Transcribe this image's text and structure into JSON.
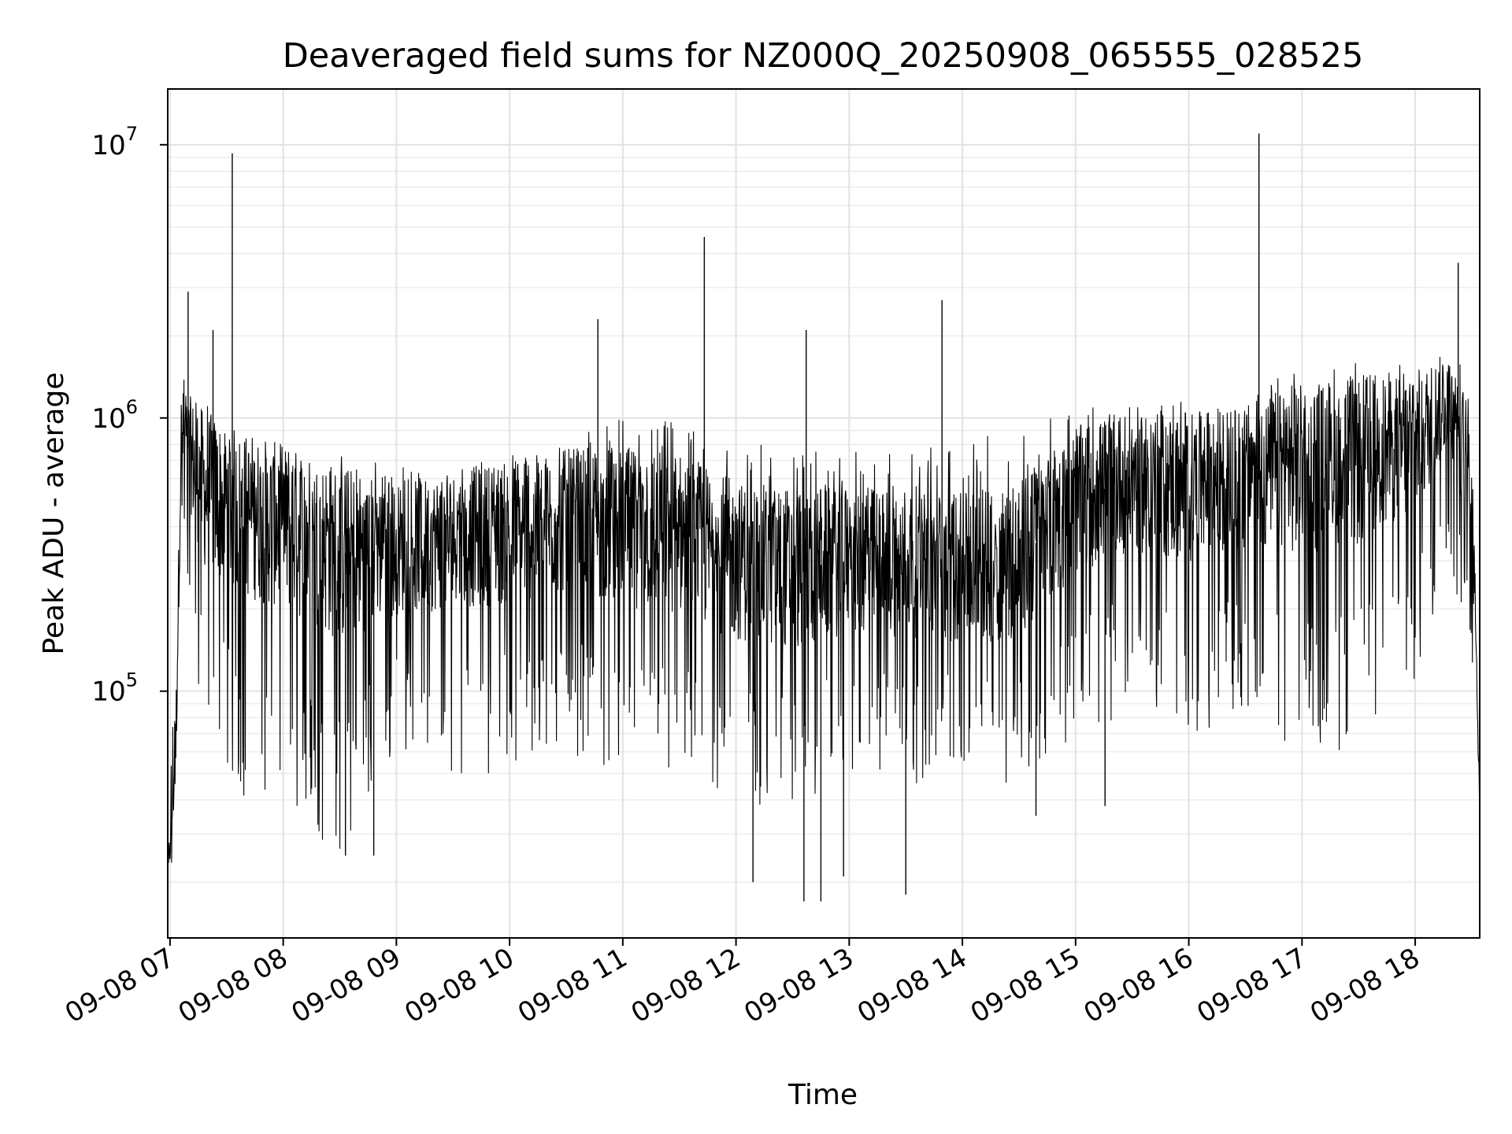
{
  "chart_data": {
    "type": "line",
    "title": "Deaveraged field sums for NZ000Q_20250908_065555_028525",
    "xlabel": "Time",
    "ylabel": "Peak ADU - average",
    "yscale": "log",
    "ylim": [
      12500,
      16000000
    ],
    "xlim_hours": [
      6.98,
      18.57
    ],
    "grid": true,
    "legend": "none",
    "line_color": "#000000",
    "x_tick_hours": [
      7,
      8,
      9,
      10,
      11,
      12,
      13,
      14,
      15,
      16,
      17,
      18
    ],
    "x_ticks": [
      "09-08 07",
      "09-08 08",
      "09-08 09",
      "09-08 10",
      "09-08 11",
      "09-08 12",
      "09-08 13",
      "09-08 14",
      "09-08 15",
      "09-08 16",
      "09-08 17",
      "09-08 18"
    ],
    "y_ticks": [
      {
        "base": "10",
        "exp": "5",
        "value": 100000
      },
      {
        "base": "10",
        "exp": "6",
        "value": 1000000
      },
      {
        "base": "10",
        "exp": "7",
        "value": 10000000
      }
    ],
    "series": [
      {
        "band_points": [
          {
            "x": 6.98,
            "median": 20000,
            "low": 15000,
            "high": 28000
          },
          {
            "x": 7.05,
            "median": 60000,
            "low": 30000,
            "high": 150000
          },
          {
            "x": 7.1,
            "median": 900000,
            "low": 400000,
            "high": 2000000
          },
          {
            "x": 7.3,
            "median": 550000,
            "low": 60000,
            "high": 1200000
          },
          {
            "x": 7.6,
            "median": 450000,
            "low": 40000,
            "high": 900000
          },
          {
            "x": 8.0,
            "median": 400000,
            "low": 35000,
            "high": 800000
          },
          {
            "x": 8.5,
            "median": 320000,
            "low": 25000,
            "high": 750000
          },
          {
            "x": 9.0,
            "median": 330000,
            "low": 60000,
            "high": 700000
          },
          {
            "x": 9.5,
            "median": 360000,
            "low": 50000,
            "high": 700000
          },
          {
            "x": 10.0,
            "median": 380000,
            "low": 50000,
            "high": 750000
          },
          {
            "x": 10.5,
            "median": 420000,
            "low": 60000,
            "high": 900000
          },
          {
            "x": 11.0,
            "median": 400000,
            "low": 50000,
            "high": 1000000
          },
          {
            "x": 11.5,
            "median": 380000,
            "low": 45000,
            "high": 1000000
          },
          {
            "x": 12.0,
            "median": 300000,
            "low": 40000,
            "high": 800000
          },
          {
            "x": 12.5,
            "median": 280000,
            "low": 35000,
            "high": 800000
          },
          {
            "x": 13.0,
            "median": 300000,
            "low": 50000,
            "high": 750000
          },
          {
            "x": 13.5,
            "median": 300000,
            "low": 45000,
            "high": 800000
          },
          {
            "x": 14.0,
            "median": 280000,
            "low": 50000,
            "high": 850000
          },
          {
            "x": 14.5,
            "median": 300000,
            "low": 45000,
            "high": 900000
          },
          {
            "x": 15.0,
            "median": 500000,
            "low": 70000,
            "high": 1100000
          },
          {
            "x": 15.5,
            "median": 600000,
            "low": 80000,
            "high": 1200000
          },
          {
            "x": 16.0,
            "median": 550000,
            "low": 70000,
            "high": 1200000
          },
          {
            "x": 16.5,
            "median": 600000,
            "low": 80000,
            "high": 1300000
          },
          {
            "x": 17.0,
            "median": 650000,
            "low": 60000,
            "high": 1500000
          },
          {
            "x": 17.5,
            "median": 700000,
            "low": 60000,
            "high": 1600000
          },
          {
            "x": 18.0,
            "median": 800000,
            "low": 100000,
            "high": 1600000
          },
          {
            "x": 18.3,
            "median": 1200000,
            "low": 300000,
            "high": 1700000
          },
          {
            "x": 18.5,
            "median": 600000,
            "low": 100000,
            "high": 1500000
          },
          {
            "x": 18.57,
            "median": 40000,
            "low": 35000,
            "high": 60000
          }
        ],
        "spikes": [
          {
            "x": 7.55,
            "y": 9300000
          },
          {
            "x": 11.72,
            "y": 4600000
          },
          {
            "x": 16.62,
            "y": 11000000
          },
          {
            "x": 18.38,
            "y": 3700000
          },
          {
            "x": 7.16,
            "y": 2900000
          },
          {
            "x": 13.82,
            "y": 2700000
          },
          {
            "x": 10.78,
            "y": 2300000
          },
          {
            "x": 12.62,
            "y": 2100000
          },
          {
            "x": 7.38,
            "y": 2100000
          },
          {
            "x": 12.6,
            "y": 17000
          },
          {
            "x": 12.75,
            "y": 17000
          },
          {
            "x": 13.5,
            "y": 18000
          },
          {
            "x": 12.15,
            "y": 20000
          },
          {
            "x": 12.95,
            "y": 21000
          },
          {
            "x": 8.8,
            "y": 25000
          },
          {
            "x": 8.55,
            "y": 25000
          },
          {
            "x": 14.65,
            "y": 35000
          },
          {
            "x": 15.26,
            "y": 38000
          }
        ]
      }
    ]
  }
}
